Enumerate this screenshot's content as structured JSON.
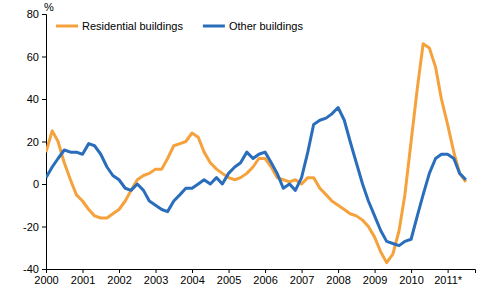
{
  "chart_data": {
    "type": "line",
    "y_label": "%",
    "x": [
      2000,
      2000.17,
      2000.33,
      2000.5,
      2000.67,
      2000.83,
      2001,
      2001.17,
      2001.33,
      2001.5,
      2001.67,
      2001.83,
      2002,
      2002.17,
      2002.33,
      2002.5,
      2002.67,
      2002.83,
      2003,
      2003.17,
      2003.33,
      2003.5,
      2003.67,
      2003.83,
      2004,
      2004.17,
      2004.33,
      2004.5,
      2004.67,
      2004.83,
      2005,
      2005.17,
      2005.33,
      2005.5,
      2005.67,
      2005.83,
      2006,
      2006.17,
      2006.33,
      2006.5,
      2006.67,
      2006.83,
      2007,
      2007.17,
      2007.33,
      2007.5,
      2007.67,
      2007.83,
      2008,
      2008.17,
      2008.33,
      2008.5,
      2008.67,
      2008.83,
      2009,
      2009.17,
      2009.33,
      2009.5,
      2009.67,
      2009.83,
      2010,
      2010.17,
      2010.33,
      2010.5,
      2010.67,
      2010.83,
      2011,
      2011.17,
      2011.33,
      2011.5
    ],
    "series": [
      {
        "name": "Residential buildings",
        "color": "#f5a23c",
        "values": [
          15,
          25,
          20,
          10,
          2,
          -5,
          -8,
          -12,
          -15,
          -16,
          -16,
          -14,
          -12,
          -8,
          -3,
          2,
          4,
          5,
          7,
          7,
          12,
          18,
          19,
          20,
          24,
          22,
          15,
          10,
          7,
          5,
          3,
          2,
          3,
          5,
          8,
          12,
          12,
          8,
          3,
          2,
          1,
          2,
          0,
          3,
          3,
          -2,
          -5,
          -8,
          -10,
          -12,
          -14,
          -15,
          -17,
          -20,
          -25,
          -32,
          -37,
          -33,
          -22,
          -5,
          20,
          45,
          66,
          64,
          55,
          40,
          28,
          15,
          5,
          1
        ]
      },
      {
        "name": "Other buildings",
        "color": "#2a6ebb",
        "values": [
          3,
          8,
          12,
          16,
          15,
          15,
          14,
          19,
          18,
          14,
          8,
          4,
          2,
          -2,
          -3,
          0,
          -3,
          -8,
          -10,
          -12,
          -13,
          -8,
          -5,
          -2,
          -2,
          0,
          2,
          0,
          3,
          0,
          5,
          8,
          10,
          15,
          12,
          14,
          15,
          10,
          5,
          -2,
          0,
          -3,
          3,
          15,
          28,
          30,
          31,
          33,
          36,
          30,
          20,
          10,
          0,
          -8,
          -15,
          -22,
          -27,
          -28,
          -29,
          -27,
          -26,
          -15,
          -5,
          5,
          12,
          14,
          14,
          12,
          5,
          2
        ]
      }
    ],
    "xlim": [
      2000,
      2011.75
    ],
    "xticks": [
      2000,
      2001,
      2002,
      2003,
      2004,
      2005,
      2006,
      2007,
      2008,
      2009,
      2010,
      {
        "value": 2011,
        "label": "2011*"
      }
    ],
    "ylim": [
      -40,
      80
    ],
    "yticks": [
      -40,
      -20,
      0,
      20,
      40,
      60,
      80
    ],
    "grid": false,
    "legend": "upper left"
  }
}
